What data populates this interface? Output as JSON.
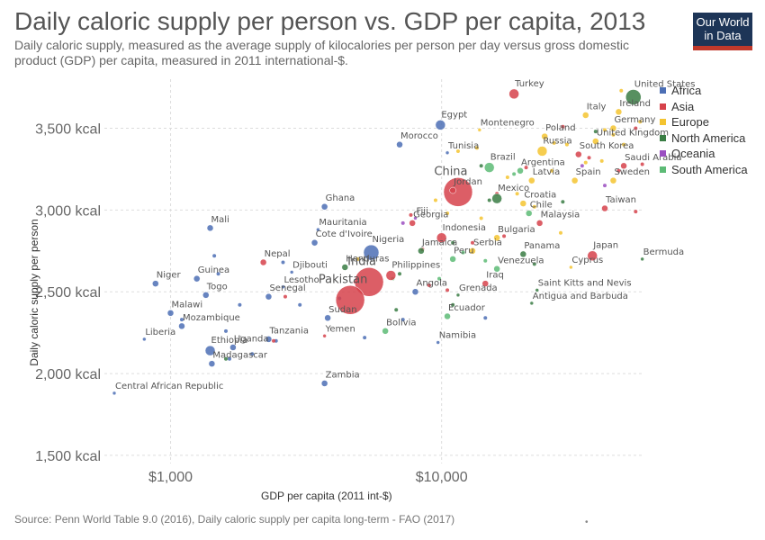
{
  "header": {
    "title": "Daily caloric supply per person vs. GDP per capita, 2013",
    "subtitle": "Daily caloric supply, measured as the average supply of kilocalories per person per day versus gross domestic product (GDP) per capita, measured in 2011 international-$.",
    "logo_line1": "Our World",
    "logo_line2": "in Data"
  },
  "footer": {
    "source": "Source: Penn World Table 9.0 (2016), Daily caloric supply per capita long-term - FAO (2017)",
    "mark": "•"
  },
  "colors": {
    "Africa": "#4c6fb5",
    "Asia": "#d6424b",
    "Europe": "#f4c430",
    "North America": "#3a7d44",
    "Oceania": "#9b4fc1",
    "South America": "#5dbb76"
  },
  "chart_data": {
    "type": "scatter",
    "title": "Daily caloric supply per person vs. GDP per capita, 2013",
    "xlabel": "GDP per capita (2011 int-$)",
    "ylabel": "Daily caloric supply per person",
    "x_scale": "log",
    "xlim": [
      570,
      56000
    ],
    "ylim": [
      1450,
      3800
    ],
    "x_ticks": [
      {
        "value": 1000,
        "label": "$1,000"
      },
      {
        "value": 10000,
        "label": "$10,000"
      }
    ],
    "y_ticks": [
      {
        "value": 1500,
        "label": "1,500 kcal"
      },
      {
        "value": 2000,
        "label": "2,000 kcal"
      },
      {
        "value": 2500,
        "label": "2,500 kcal"
      },
      {
        "value": 3000,
        "label": "3,000 kcal"
      },
      {
        "value": 3500,
        "label": "3,500 kcal"
      }
    ],
    "grid": true,
    "legend_position": "right",
    "legend": [
      "Africa",
      "Asia",
      "Europe",
      "North America",
      "Oceania",
      "South America"
    ],
    "points": [
      {
        "label": "Turkey",
        "x": 18500,
        "y": 3710,
        "region": "Asia",
        "size": "medium"
      },
      {
        "label": "United States",
        "x": 51000,
        "y": 3690,
        "region": "North America",
        "size": "large"
      },
      {
        "label": "Ireland",
        "x": 45000,
        "y": 3600,
        "region": "Europe",
        "size": "small"
      },
      {
        "label": "Italy",
        "x": 34000,
        "y": 3580,
        "region": "Europe",
        "size": "small"
      },
      {
        "label": "Egypt",
        "x": 9900,
        "y": 3520,
        "region": "Africa",
        "size": "medium"
      },
      {
        "label": "Montenegro",
        "x": 13800,
        "y": 3490,
        "region": "Europe",
        "size": "tiny"
      },
      {
        "label": "Germany",
        "x": 43000,
        "y": 3500,
        "region": "Europe",
        "size": "small"
      },
      {
        "label": "Poland",
        "x": 24000,
        "y": 3450,
        "region": "Europe",
        "size": "small"
      },
      {
        "label": "United Kingdom",
        "x": 37000,
        "y": 3420,
        "region": "Europe",
        "size": "small"
      },
      {
        "label": "Morocco",
        "x": 7000,
        "y": 3400,
        "region": "Africa",
        "size": "small"
      },
      {
        "label": "Russia",
        "x": 23500,
        "y": 3360,
        "region": "Europe",
        "size": "medium"
      },
      {
        "label": "South Korea",
        "x": 32000,
        "y": 3340,
        "region": "Asia",
        "size": "small"
      },
      {
        "label": "Tunisia",
        "x": 10500,
        "y": 3350,
        "region": "Africa",
        "size": "tiny"
      },
      {
        "label": "Brazil",
        "x": 15000,
        "y": 3260,
        "region": "South America",
        "size": "medium"
      },
      {
        "label": "Saudi Arabia",
        "x": 47000,
        "y": 3270,
        "region": "Asia",
        "size": "small"
      },
      {
        "label": "Argentina",
        "x": 19500,
        "y": 3240,
        "region": "South America",
        "size": "small"
      },
      {
        "label": "Latvia",
        "x": 21500,
        "y": 3180,
        "region": "Europe",
        "size": "small"
      },
      {
        "label": "Spain",
        "x": 31000,
        "y": 3180,
        "region": "Europe",
        "size": "small"
      },
      {
        "label": "Sweden",
        "x": 43000,
        "y": 3180,
        "region": "Europe",
        "size": "small"
      },
      {
        "label": "China",
        "x": 11500,
        "y": 3110,
        "region": "Asia",
        "size": "huge"
      },
      {
        "label": "Jordan",
        "x": 11000,
        "y": 3120,
        "region": "Asia",
        "size": "small"
      },
      {
        "label": "Mexico",
        "x": 16000,
        "y": 3070,
        "region": "North America",
        "size": "medium"
      },
      {
        "label": "Croatia",
        "x": 20000,
        "y": 3040,
        "region": "Europe",
        "size": "small"
      },
      {
        "label": "Ghana",
        "x": 3700,
        "y": 3020,
        "region": "Africa",
        "size": "small"
      },
      {
        "label": "Taiwan",
        "x": 40000,
        "y": 3010,
        "region": "Asia",
        "size": "small"
      },
      {
        "label": "Chile",
        "x": 21000,
        "y": 2980,
        "region": "South America",
        "size": "small"
      },
      {
        "label": "Fiji",
        "x": 8000,
        "y": 2950,
        "region": "Oceania",
        "size": "tiny"
      },
      {
        "label": "Georgia",
        "x": 7800,
        "y": 2920,
        "region": "Asia",
        "size": "small"
      },
      {
        "label": "Malaysia",
        "x": 23000,
        "y": 2920,
        "region": "Asia",
        "size": "small"
      },
      {
        "label": "Mali",
        "x": 1400,
        "y": 2890,
        "region": "Africa",
        "size": "small"
      },
      {
        "label": "Mauritania",
        "x": 3500,
        "y": 2880,
        "region": "Africa",
        "size": "tiny"
      },
      {
        "label": "Indonesia",
        "x": 10000,
        "y": 2830,
        "region": "Asia",
        "size": "medium"
      },
      {
        "label": "Bulgaria",
        "x": 16000,
        "y": 2830,
        "region": "Europe",
        "size": "small"
      },
      {
        "label": "Cote d'Ivoire",
        "x": 3400,
        "y": 2800,
        "region": "Africa",
        "size": "small"
      },
      {
        "label": "Jamaica",
        "x": 8400,
        "y": 2750,
        "region": "North America",
        "size": "small"
      },
      {
        "label": "Serbia",
        "x": 13000,
        "y": 2750,
        "region": "Europe",
        "size": "small"
      },
      {
        "label": "Nigeria",
        "x": 5500,
        "y": 2740,
        "region": "Africa",
        "size": "large"
      },
      {
        "label": "Panama",
        "x": 20000,
        "y": 2730,
        "region": "North America",
        "size": "small"
      },
      {
        "label": "Japan",
        "x": 36000,
        "y": 2720,
        "region": "Asia",
        "size": "medium"
      },
      {
        "label": "Bermuda",
        "x": 55000,
        "y": 2700,
        "region": "North America",
        "size": "tiny"
      },
      {
        "label": "Nepal",
        "x": 2200,
        "y": 2680,
        "region": "Asia",
        "size": "small"
      },
      {
        "label": "Peru",
        "x": 11000,
        "y": 2700,
        "region": "South America",
        "size": "small"
      },
      {
        "label": "Cyprus",
        "x": 30000,
        "y": 2650,
        "region": "Europe",
        "size": "tiny"
      },
      {
        "label": "Honduras",
        "x": 4400,
        "y": 2650,
        "region": "North America",
        "size": "small"
      },
      {
        "label": "Venezuela",
        "x": 16000,
        "y": 2640,
        "region": "South America",
        "size": "small"
      },
      {
        "label": "Djibouti",
        "x": 2800,
        "y": 2620,
        "region": "Africa",
        "size": "tiny"
      },
      {
        "label": "Philippines",
        "x": 6500,
        "y": 2600,
        "region": "Asia",
        "size": "medium"
      },
      {
        "label": "Guinea",
        "x": 1250,
        "y": 2580,
        "region": "Africa",
        "size": "small"
      },
      {
        "label": "India",
        "x": 5400,
        "y": 2560,
        "region": "Asia",
        "size": "huge"
      },
      {
        "label": "Niger",
        "x": 880,
        "y": 2550,
        "region": "Africa",
        "size": "small"
      },
      {
        "label": "Iraq",
        "x": 14500,
        "y": 2550,
        "region": "Asia",
        "size": "small"
      },
      {
        "label": "Lesotho",
        "x": 2600,
        "y": 2530,
        "region": "Africa",
        "size": "tiny"
      },
      {
        "label": "Saint Kitts and Nevis",
        "x": 22500,
        "y": 2510,
        "region": "North America",
        "size": "tiny"
      },
      {
        "label": "Angola",
        "x": 8000,
        "y": 2500,
        "region": "Africa",
        "size": "small"
      },
      {
        "label": "Togo",
        "x": 1350,
        "y": 2480,
        "region": "Africa",
        "size": "small"
      },
      {
        "label": "Senegal",
        "x": 2300,
        "y": 2470,
        "region": "Africa",
        "size": "small"
      },
      {
        "label": "Pakistan",
        "x": 4600,
        "y": 2450,
        "region": "Asia",
        "size": "huge"
      },
      {
        "label": "Grenada",
        "x": 11500,
        "y": 2480,
        "region": "North America",
        "size": "tiny"
      },
      {
        "label": "Antigua and Barbuda",
        "x": 21500,
        "y": 2430,
        "region": "North America",
        "size": "tiny"
      },
      {
        "label": "Malawi",
        "x": 1000,
        "y": 2370,
        "region": "Africa",
        "size": "small"
      },
      {
        "label": "Sudan",
        "x": 3800,
        "y": 2340,
        "region": "Africa",
        "size": "small"
      },
      {
        "label": "Ecuador",
        "x": 10500,
        "y": 2350,
        "region": "South America",
        "size": "small"
      },
      {
        "label": "Mozambique",
        "x": 1100,
        "y": 2290,
        "region": "Africa",
        "size": "small"
      },
      {
        "label": "Bolivia",
        "x": 6200,
        "y": 2260,
        "region": "South America",
        "size": "small"
      },
      {
        "label": "Liberia",
        "x": 800,
        "y": 2210,
        "region": "Africa",
        "size": "tiny"
      },
      {
        "label": "Yemen",
        "x": 3700,
        "y": 2230,
        "region": "Asia",
        "size": "tiny"
      },
      {
        "label": "Tanzania",
        "x": 2300,
        "y": 2210,
        "region": "Africa",
        "size": "small"
      },
      {
        "label": "Namibia",
        "x": 9700,
        "y": 2190,
        "region": "Africa",
        "size": "tiny"
      },
      {
        "label": "Uganda",
        "x": 1700,
        "y": 2160,
        "region": "Africa",
        "size": "small"
      },
      {
        "label": "Ethiopia",
        "x": 1400,
        "y": 2140,
        "region": "Africa",
        "size": "medium"
      },
      {
        "label": "Madagascar",
        "x": 1420,
        "y": 2060,
        "region": "Africa",
        "size": "small"
      },
      {
        "label": "Zambia",
        "x": 3700,
        "y": 1940,
        "region": "Africa",
        "size": "small"
      },
      {
        "label": "Central African Republic",
        "x": 620,
        "y": 1880,
        "region": "Africa",
        "size": "tiny"
      }
    ],
    "unlabeled_points": [
      {
        "x": 1100,
        "y": 2330,
        "region": "Africa"
      },
      {
        "x": 1450,
        "y": 2720,
        "region": "Africa"
      },
      {
        "x": 1500,
        "y": 2610,
        "region": "Africa"
      },
      {
        "x": 1600,
        "y": 2260,
        "region": "Africa"
      },
      {
        "x": 1650,
        "y": 2090,
        "region": "Africa"
      },
      {
        "x": 1800,
        "y": 2420,
        "region": "Africa"
      },
      {
        "x": 2000,
        "y": 2120,
        "region": "Africa"
      },
      {
        "x": 2450,
        "y": 2200,
        "region": "Africa"
      },
      {
        "x": 2600,
        "y": 2680,
        "region": "Africa"
      },
      {
        "x": 3000,
        "y": 2420,
        "region": "Africa"
      },
      {
        "x": 4200,
        "y": 2460,
        "region": "Africa"
      },
      {
        "x": 5200,
        "y": 2220,
        "region": "Africa"
      },
      {
        "x": 7200,
        "y": 2330,
        "region": "Africa"
      },
      {
        "x": 14500,
        "y": 2340,
        "region": "Africa"
      },
      {
        "x": 2650,
        "y": 2470,
        "region": "Asia"
      },
      {
        "x": 2400,
        "y": 2200,
        "region": "Asia"
      },
      {
        "x": 4800,
        "y": 2560,
        "region": "Asia"
      },
      {
        "x": 9000,
        "y": 2540,
        "region": "Asia"
      },
      {
        "x": 10500,
        "y": 2510,
        "region": "Asia"
      },
      {
        "x": 8500,
        "y": 2760,
        "region": "Asia"
      },
      {
        "x": 13000,
        "y": 2800,
        "region": "Asia"
      },
      {
        "x": 17000,
        "y": 2840,
        "region": "Asia"
      },
      {
        "x": 20500,
        "y": 3260,
        "region": "Asia"
      },
      {
        "x": 35000,
        "y": 3320,
        "region": "Asia"
      },
      {
        "x": 45000,
        "y": 3240,
        "region": "Asia"
      },
      {
        "x": 52000,
        "y": 2990,
        "region": "Asia"
      },
      {
        "x": 55000,
        "y": 3280,
        "region": "Asia"
      },
      {
        "x": 52000,
        "y": 3500,
        "region": "Asia"
      },
      {
        "x": 28000,
        "y": 3510,
        "region": "Asia"
      },
      {
        "x": 7700,
        "y": 2970,
        "region": "Asia"
      },
      {
        "x": 16000,
        "y": 3100,
        "region": "Asia"
      },
      {
        "x": 46000,
        "y": 3730,
        "region": "Europe"
      },
      {
        "x": 54000,
        "y": 3540,
        "region": "Europe"
      },
      {
        "x": 40000,
        "y": 3490,
        "region": "Europe"
      },
      {
        "x": 29000,
        "y": 3400,
        "region": "Europe"
      },
      {
        "x": 26000,
        "y": 3410,
        "region": "Europe"
      },
      {
        "x": 25500,
        "y": 3240,
        "region": "Europe"
      },
      {
        "x": 34000,
        "y": 3290,
        "region": "Europe"
      },
      {
        "x": 39000,
        "y": 3300,
        "region": "Europe"
      },
      {
        "x": 47000,
        "y": 3400,
        "region": "Europe"
      },
      {
        "x": 43000,
        "y": 3460,
        "region": "Europe"
      },
      {
        "x": 17500,
        "y": 3200,
        "region": "Europe"
      },
      {
        "x": 19000,
        "y": 3100,
        "region": "Europe"
      },
      {
        "x": 22000,
        "y": 3020,
        "region": "Europe"
      },
      {
        "x": 14000,
        "y": 2950,
        "region": "Europe"
      },
      {
        "x": 10500,
        "y": 2980,
        "region": "Europe"
      },
      {
        "x": 9500,
        "y": 3060,
        "region": "Europe"
      },
      {
        "x": 11500,
        "y": 3360,
        "region": "Europe"
      },
      {
        "x": 13500,
        "y": 3380,
        "region": "Europe"
      },
      {
        "x": 4900,
        "y": 2700,
        "region": "Europe"
      },
      {
        "x": 27500,
        "y": 2860,
        "region": "Europe"
      },
      {
        "x": 37000,
        "y": 3480,
        "region": "North America"
      },
      {
        "x": 14000,
        "y": 3270,
        "region": "North America"
      },
      {
        "x": 15000,
        "y": 3060,
        "region": "North America"
      },
      {
        "x": 22000,
        "y": 2670,
        "region": "North America"
      },
      {
        "x": 11000,
        "y": 2800,
        "region": "North America"
      },
      {
        "x": 7000,
        "y": 2610,
        "region": "North America"
      },
      {
        "x": 6800,
        "y": 2390,
        "region": "North America"
      },
      {
        "x": 11000,
        "y": 2420,
        "region": "North America"
      },
      {
        "x": 28000,
        "y": 3050,
        "region": "North America"
      },
      {
        "x": 1600,
        "y": 2090,
        "region": "North America"
      },
      {
        "x": 33000,
        "y": 3270,
        "region": "Oceania"
      },
      {
        "x": 40000,
        "y": 3150,
        "region": "Oceania"
      },
      {
        "x": 7200,
        "y": 2920,
        "region": "Oceania"
      },
      {
        "x": 9800,
        "y": 2580,
        "region": "South America"
      },
      {
        "x": 12000,
        "y": 2740,
        "region": "South America"
      },
      {
        "x": 14500,
        "y": 2690,
        "region": "South America"
      },
      {
        "x": 18500,
        "y": 3220,
        "region": "South America"
      },
      {
        "x": 6600,
        "y": 2580,
        "region": "South America"
      }
    ]
  }
}
